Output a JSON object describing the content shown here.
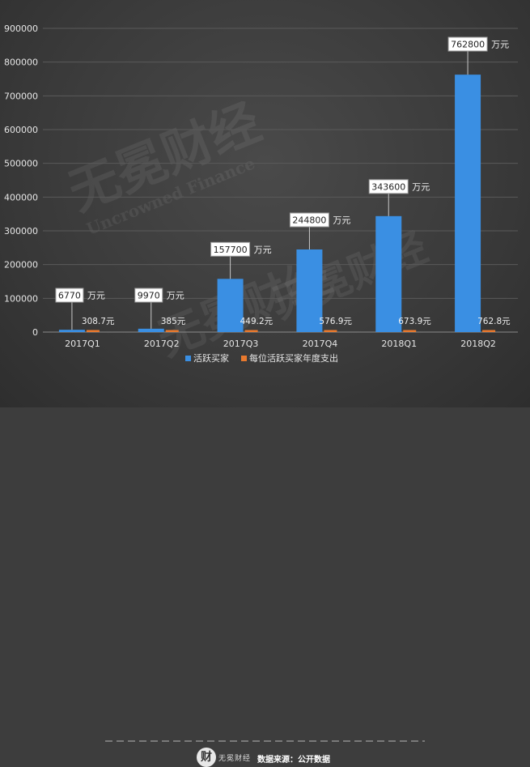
{
  "chart_data": {
    "type": "bar",
    "categories": [
      "2017Q1",
      "2017Q2",
      "2017Q3",
      "2017Q4",
      "2018Q1",
      "2018Q2"
    ],
    "series": [
      {
        "name": "活跃买家",
        "color": "#3a8fe3",
        "values": [
          6770,
          9970,
          157700,
          244800,
          343600,
          762800
        ],
        "labels": [
          "6770",
          "9970",
          "157700",
          "244800",
          "343600",
          "762800"
        ],
        "unit_label": "万元"
      },
      {
        "name": "每位活跃买家年度支出",
        "color": "#e8792e",
        "values": [
          308.7,
          385,
          449.2,
          576.9,
          673.9,
          762.8
        ],
        "labels": [
          "308.7元",
          "385元",
          "449.2元",
          "576.9元",
          "673.9元",
          "762.8元"
        ]
      }
    ],
    "ylim": [
      0,
      900000
    ],
    "yticks": [
      "0",
      "100000",
      "200000",
      "300000",
      "400000",
      "500000",
      "600000",
      "700000",
      "800000",
      "900000"
    ],
    "grid": true,
    "legend": "bottom"
  },
  "watermark": {
    "text": "无冕财经",
    "subtext": "Uncrowned Finance"
  },
  "footer": {
    "logo_glyph": "财",
    "brand": "无冕财经",
    "source": "数据来源：公开数据"
  }
}
